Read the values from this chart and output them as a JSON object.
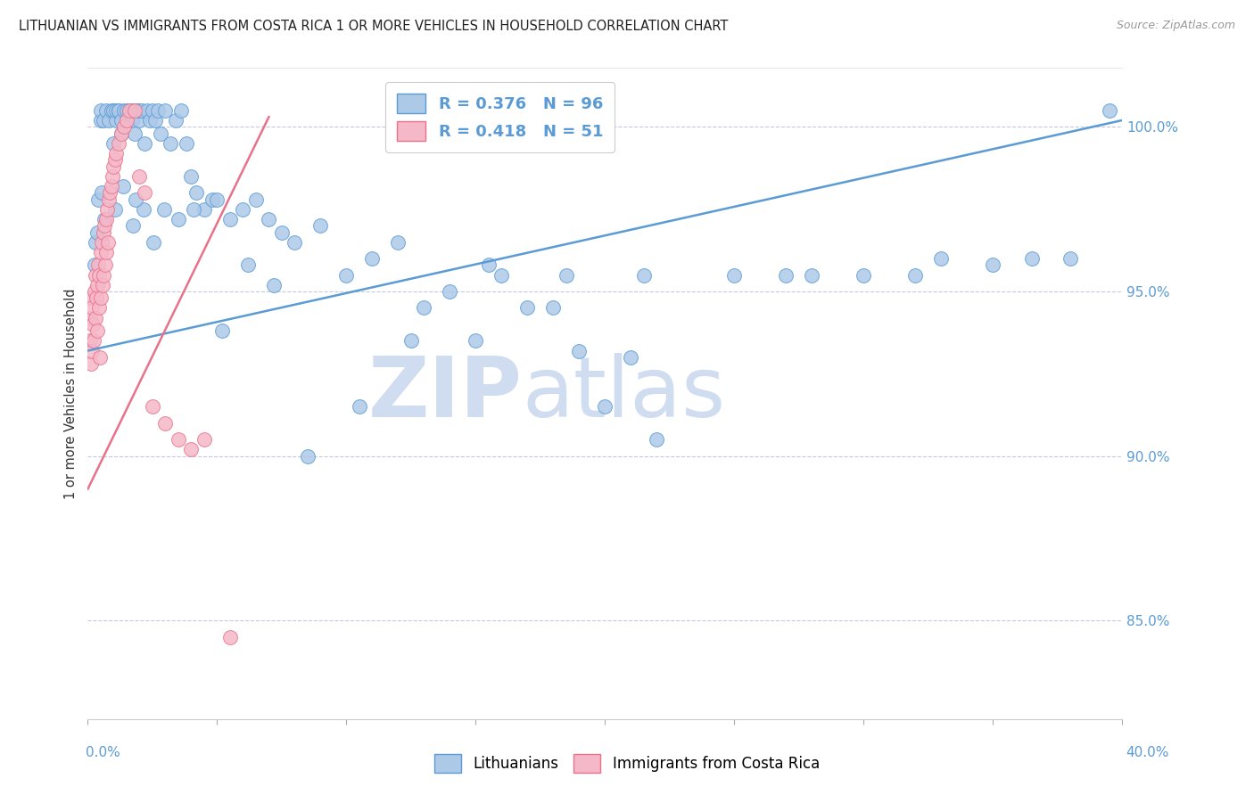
{
  "title": "LITHUANIAN VS IMMIGRANTS FROM COSTA RICA 1 OR MORE VEHICLES IN HOUSEHOLD CORRELATION CHART",
  "source": "Source: ZipAtlas.com",
  "ylabel": "1 or more Vehicles in Household",
  "xmin": 0.0,
  "xmax": 40.0,
  "ymin": 82.0,
  "ymax": 101.8,
  "blue_R": 0.376,
  "blue_N": 96,
  "pink_R": 0.418,
  "pink_N": 51,
  "blue_color": "#adc9e8",
  "pink_color": "#f5b8c8",
  "blue_line_color": "#5b9bd5",
  "pink_line_color": "#e8728a",
  "legend_blue_label": "R = 0.376   N = 96",
  "legend_pink_label": "R = 0.418   N = 51",
  "blue_line_x0": 0.0,
  "blue_line_y0": 93.2,
  "blue_line_x1": 40.0,
  "blue_line_y1": 100.2,
  "pink_line_x0": 0.0,
  "pink_line_y0": 89.0,
  "pink_line_x1": 7.0,
  "pink_line_y1": 100.3,
  "blue_points_x": [
    0.3,
    0.4,
    0.5,
    0.5,
    0.6,
    0.7,
    0.8,
    0.9,
    1.0,
    1.0,
    1.1,
    1.1,
    1.2,
    1.2,
    1.3,
    1.3,
    1.4,
    1.5,
    1.5,
    1.6,
    1.7,
    1.7,
    1.8,
    1.8,
    1.9,
    2.0,
    2.0,
    2.1,
    2.2,
    2.3,
    2.4,
    2.5,
    2.6,
    2.7,
    2.8,
    3.0,
    3.2,
    3.4,
    3.6,
    3.8,
    4.0,
    4.2,
    4.5,
    4.8,
    5.0,
    5.5,
    6.0,
    6.5,
    7.0,
    7.5,
    8.0,
    9.0,
    10.0,
    11.0,
    12.0,
    13.0,
    14.0,
    15.0,
    16.0,
    17.0,
    18.0,
    19.0,
    20.0,
    21.0,
    22.0,
    25.0,
    28.0,
    30.0,
    32.0,
    35.0,
    38.0,
    39.5,
    0.35,
    0.65,
    1.05,
    1.35,
    1.75,
    2.15,
    2.55,
    2.95,
    3.5,
    4.1,
    5.2,
    6.2,
    7.2,
    8.5,
    10.5,
    12.5,
    15.5,
    18.5,
    21.5,
    27.0,
    33.0,
    36.5,
    0.25,
    0.55,
    1.85
  ],
  "blue_points_y": [
    96.5,
    97.8,
    100.2,
    100.5,
    100.2,
    100.5,
    100.2,
    100.5,
    99.5,
    100.5,
    100.2,
    100.5,
    100.5,
    100.5,
    99.8,
    100.2,
    100.5,
    100.2,
    100.5,
    100.5,
    100.5,
    100.2,
    100.5,
    99.8,
    100.5,
    100.2,
    100.5,
    100.5,
    99.5,
    100.5,
    100.2,
    100.5,
    100.2,
    100.5,
    99.8,
    100.5,
    99.5,
    100.2,
    100.5,
    99.5,
    98.5,
    98.0,
    97.5,
    97.8,
    97.8,
    97.2,
    97.5,
    97.8,
    97.2,
    96.8,
    96.5,
    97.0,
    95.5,
    96.0,
    96.5,
    94.5,
    95.0,
    93.5,
    95.5,
    94.5,
    94.5,
    93.2,
    91.5,
    93.0,
    90.5,
    95.5,
    95.5,
    95.5,
    95.5,
    95.8,
    96.0,
    100.5,
    96.8,
    97.2,
    97.5,
    98.2,
    97.0,
    97.5,
    96.5,
    97.5,
    97.2,
    97.5,
    93.8,
    95.8,
    95.2,
    90.0,
    91.5,
    93.5,
    95.8,
    95.5,
    95.5,
    95.5,
    96.0,
    96.0,
    95.8,
    98.0,
    97.8
  ],
  "pink_points_x": [
    0.05,
    0.08,
    0.1,
    0.12,
    0.15,
    0.17,
    0.2,
    0.22,
    0.25,
    0.28,
    0.3,
    0.32,
    0.35,
    0.38,
    0.4,
    0.42,
    0.45,
    0.48,
    0.5,
    0.52,
    0.55,
    0.58,
    0.6,
    0.62,
    0.65,
    0.68,
    0.7,
    0.72,
    0.75,
    0.78,
    0.8,
    0.85,
    0.9,
    0.95,
    1.0,
    1.05,
    1.1,
    1.2,
    1.3,
    1.4,
    1.5,
    1.6,
    1.8,
    2.0,
    2.2,
    2.5,
    3.0,
    3.5,
    4.0,
    4.5,
    5.5
  ],
  "pink_points_y": [
    94.8,
    93.5,
    94.2,
    92.8,
    94.5,
    93.2,
    94.0,
    93.5,
    95.0,
    94.2,
    95.5,
    94.8,
    95.2,
    93.8,
    95.8,
    94.5,
    95.5,
    93.0,
    96.2,
    94.8,
    96.5,
    95.2,
    96.8,
    95.5,
    97.0,
    95.8,
    97.2,
    96.2,
    97.5,
    96.5,
    97.8,
    98.0,
    98.2,
    98.5,
    98.8,
    99.0,
    99.2,
    99.5,
    99.8,
    100.0,
    100.2,
    100.5,
    100.5,
    98.5,
    98.0,
    91.5,
    91.0,
    90.5,
    90.2,
    90.5,
    84.5
  ],
  "background_color": "#ffffff",
  "grid_color": "#c8c8dc",
  "watermark_text": "ZIPatlas",
  "watermark_color": "#d0ddf0",
  "axis_color": "#5b9bd5",
  "title_fontsize": 10.5,
  "source_fontsize": 9
}
